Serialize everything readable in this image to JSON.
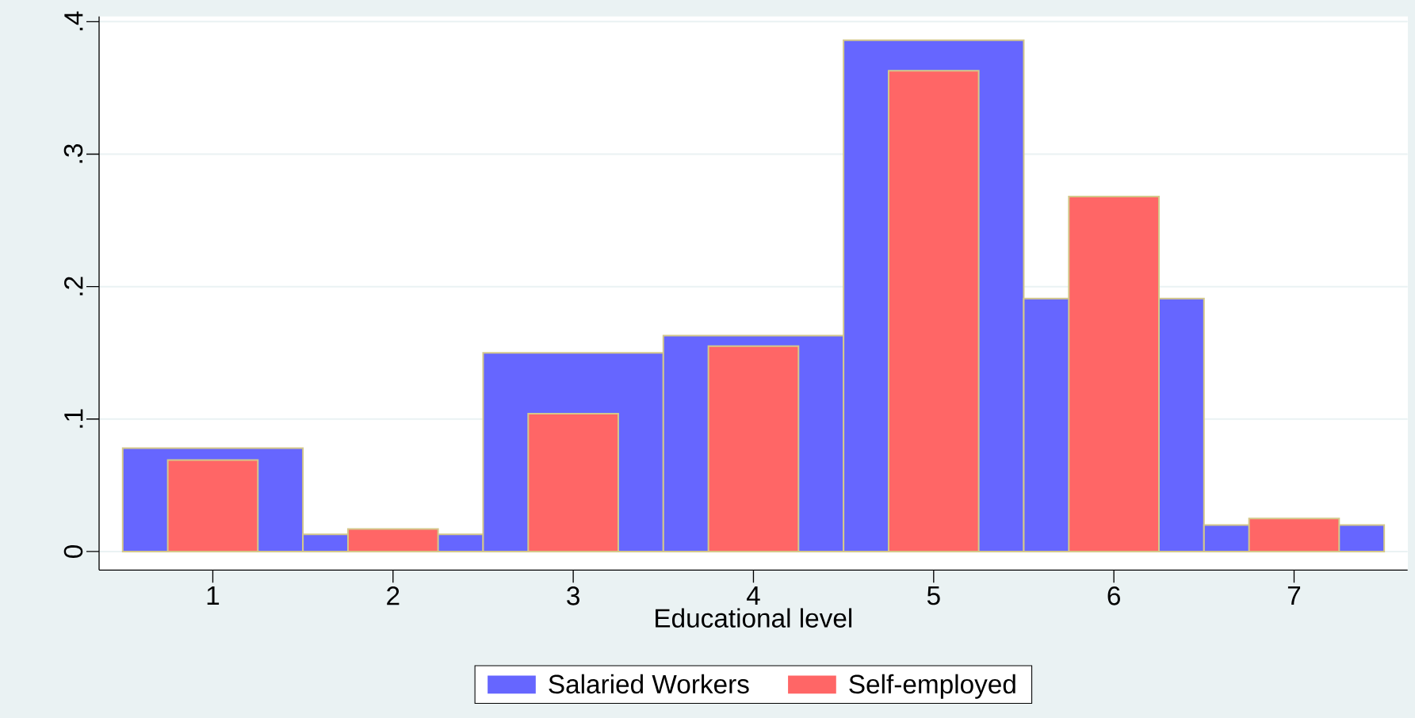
{
  "chart_data": {
    "type": "bar",
    "xlabel": "Educational level",
    "categories": [
      "1",
      "2",
      "3",
      "4",
      "5",
      "6",
      "7"
    ],
    "series": [
      {
        "name": "Salaried Workers",
        "color": "#6666ff",
        "values": [
          0.078,
          0.013,
          0.15,
          0.163,
          0.386,
          0.191,
          0.02
        ]
      },
      {
        "name": "Self-employed",
        "color": "#ff6666",
        "values": [
          0.069,
          0.017,
          0.104,
          0.155,
          0.363,
          0.268,
          0.025
        ]
      }
    ],
    "ylim": [
      -0.014,
      0.404
    ],
    "yticks": [
      0,
      {
        "value": 0.1,
        "label": ".1"
      },
      {
        "value": 0.2,
        "label": ".2"
      },
      {
        "value": 0.3,
        "label": ".3"
      },
      {
        "value": 0.4,
        "label": ".4"
      }
    ],
    "grid": "y",
    "legend": "bottom"
  }
}
